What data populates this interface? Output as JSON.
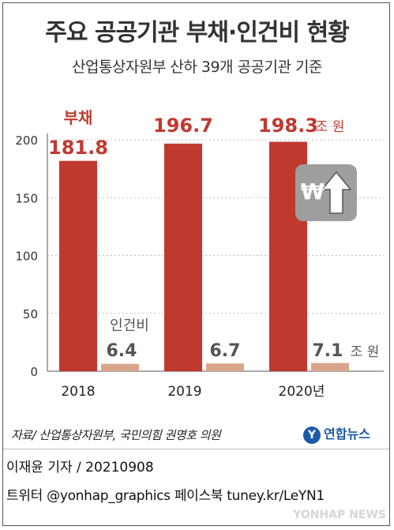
{
  "title": "주요 공공기관 부채·인건비 현황",
  "subtitle": "산업통상자원부 산하 39개 공공기관 기준",
  "source": "자료/ 산업통상자원부, 국민의힘 권명호 의원",
  "logo_text": "연합뉴스",
  "credit": "이재윤 기자 / 20210908",
  "social": "트위터 @yonhap_graphics  페이스북 tuney.kr/LeYN1",
  "watermark": "YONHAP NEWS",
  "chart_data": {
    "type": "bar",
    "categories": [
      "2018",
      "2019",
      "2020년"
    ],
    "series": [
      {
        "name": "부채",
        "values": [
          181.8,
          196.7,
          198.3
        ],
        "color": "#c0392f"
      },
      {
        "name": "인건비",
        "values": [
          6.4,
          6.7,
          7.1
        ],
        "color": "#d9a58a"
      }
    ],
    "value_labels": {
      "debt": [
        "181.8",
        "196.7",
        "198.3"
      ],
      "labor": [
        "6.4",
        "6.7",
        "7.1"
      ]
    },
    "unit_label": "조 원",
    "ylim": [
      0,
      200
    ],
    "yticks": [
      0,
      50,
      100,
      150,
      200
    ],
    "grid": true,
    "icon": "won-up-arrow-icon"
  }
}
